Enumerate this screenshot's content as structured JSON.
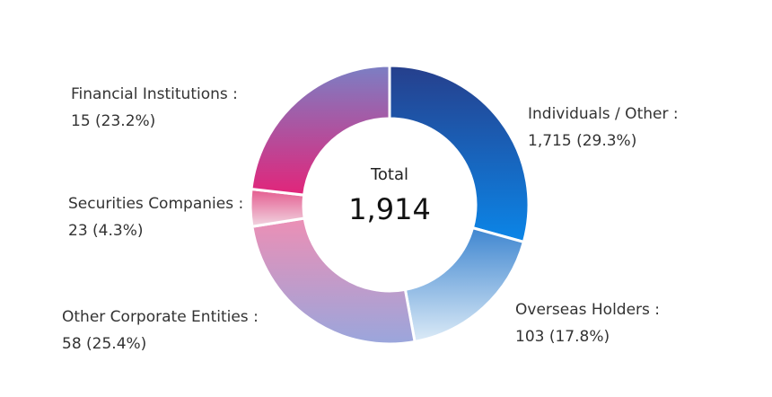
{
  "chart_data": {
    "type": "pie",
    "center": {
      "label": "Total",
      "value": "1,914"
    },
    "slices": [
      {
        "name": "Individuals / Other :",
        "value_label": "1,715 (29.3%)",
        "value": 1715,
        "percent": 29.3,
        "color_top": "#263f8c",
        "color_bottom": "#0b86e8"
      },
      {
        "name": "Overseas Holders :",
        "value_label": "103 (17.8%)",
        "value": 103,
        "percent": 17.8,
        "color_top": "#3f86d0",
        "color_bottom": "#dcebf7"
      },
      {
        "name": "Other Corporate Entities :",
        "value_label": "58 (25.4%)",
        "value": 58,
        "percent": 25.4,
        "color_top": "#ec8fb5",
        "color_bottom": "#9aa6dc"
      },
      {
        "name": "Securities Companies :",
        "value_label": "23 (4.3%)",
        "value": 23,
        "percent": 4.3,
        "color_top": "#e45a8e",
        "color_bottom": "#f1d6e2"
      },
      {
        "name": "Financial Institutions :",
        "value_label": "15 (23.2%)",
        "value": 15,
        "percent": 23.2,
        "color_top": "#7b7fc4",
        "color_bottom": "#e2257a"
      }
    ]
  }
}
